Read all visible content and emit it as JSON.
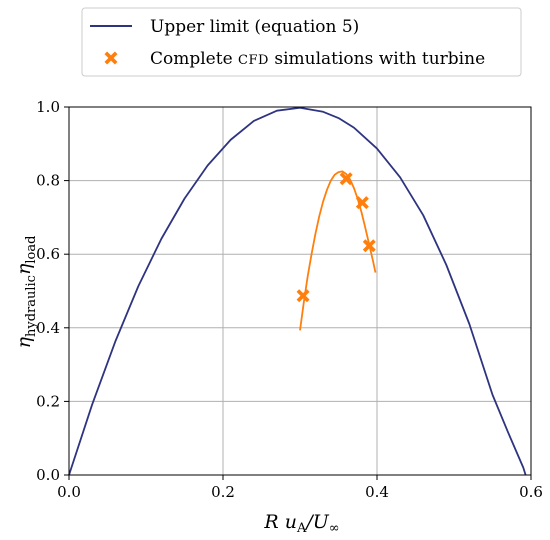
{
  "chart_data": {
    "type": "line",
    "title": "",
    "xlabel": {
      "base": "R u",
      "sub": "A",
      "tail": "/U",
      "tail_sub": "∞"
    },
    "ylabel": {
      "base1": "η",
      "sub1": "hydraulic",
      "base2": "η",
      "sub2": "load"
    },
    "xlim": [
      0.0,
      0.6
    ],
    "ylim": [
      0.0,
      1.0
    ],
    "xticks": [
      0.0,
      0.2,
      0.4,
      0.6
    ],
    "xtick_labels": [
      "0.0",
      "0.2",
      "0.4",
      "0.6"
    ],
    "yticks": [
      0.0,
      0.2,
      0.4,
      0.6,
      0.8,
      1.0
    ],
    "ytick_labels": [
      "0.0",
      "0.2",
      "0.4",
      "0.6",
      "0.8",
      "1.0"
    ],
    "grid": true,
    "legend_position": "top-outside",
    "series": [
      {
        "name": "Upper limit (equation 5)",
        "kind": "line",
        "color": "#2e3480",
        "x": [
          0.0,
          0.03,
          0.06,
          0.09,
          0.12,
          0.15,
          0.18,
          0.21,
          0.24,
          0.27,
          0.3,
          0.33,
          0.35,
          0.37,
          0.4,
          0.43,
          0.46,
          0.49,
          0.52,
          0.55,
          0.57,
          0.59,
          0.593
        ],
        "y": [
          0.0,
          0.191,
          0.362,
          0.513,
          0.642,
          0.751,
          0.841,
          0.911,
          0.962,
          0.99,
          0.998,
          0.987,
          0.97,
          0.944,
          0.887,
          0.809,
          0.706,
          0.571,
          0.41,
          0.218,
          0.117,
          0.02,
          0.0
        ]
      },
      {
        "name": "",
        "kind": "line",
        "color": "#ff7f0e",
        "x": [
          0.3,
          0.305,
          0.31,
          0.315,
          0.32,
          0.325,
          0.33,
          0.335,
          0.34,
          0.345,
          0.35,
          0.355,
          0.36,
          0.365,
          0.37,
          0.375,
          0.38,
          0.385,
          0.39,
          0.395,
          0.398
        ],
        "y": [
          0.393,
          0.47,
          0.54,
          0.6,
          0.655,
          0.703,
          0.743,
          0.775,
          0.8,
          0.816,
          0.823,
          0.825,
          0.818,
          0.803,
          0.78,
          0.75,
          0.713,
          0.67,
          0.625,
          0.58,
          0.55
        ]
      },
      {
        "name": "Complete CFD simulations with turbine",
        "legend_main": "Complete ",
        "legend_sc": "CFD",
        "legend_tail": " simulations with turbine",
        "kind": "scatter",
        "marker": "X",
        "color": "#ff7f0e",
        "x": [
          0.304,
          0.36,
          0.381,
          0.39
        ],
        "y": [
          0.487,
          0.805,
          0.74,
          0.623
        ]
      }
    ]
  }
}
